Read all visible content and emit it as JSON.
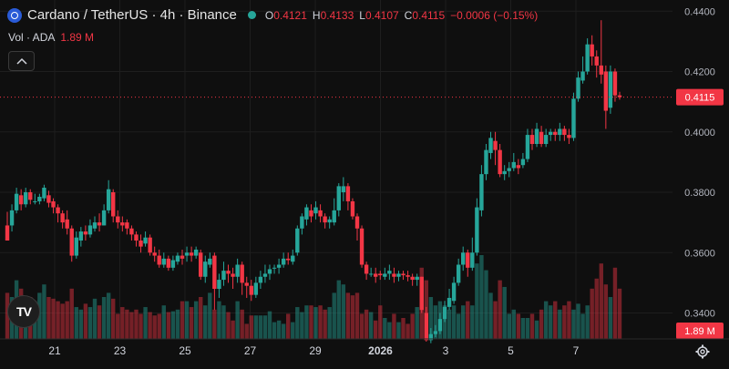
{
  "header": {
    "title": "Cardano / TetherUS · 4h · Binance",
    "open_label": "O",
    "open": "0.4121",
    "high_label": "H",
    "high": "0.4133",
    "low_label": "L",
    "low": "0.4107",
    "close_label": "C",
    "close": "0.4115",
    "change": "−0.0006 (−0.15%)"
  },
  "volume_legend": {
    "label": "Vol · ADA",
    "value": "1.89 M"
  },
  "price_badge": "0.4115",
  "volume_badge": "1.89 M",
  "colors": {
    "up": "#26a69a",
    "down": "#f23645",
    "background": "#0f0f0f",
    "grid": "#1e1e1e"
  },
  "icons": {
    "symbol": "cardano-coin-icon",
    "status": "market-status-dot-icon",
    "collapse": "chevron-up-icon",
    "settings": "gear-icon",
    "logo": "tradingview-logo-icon"
  },
  "logo_text": "TV",
  "chart_data": {
    "type": "candlestick",
    "x_ticks": [
      "21",
      "23",
      "25",
      "27",
      "29",
      "2026",
      "3",
      "5",
      "7"
    ],
    "y_ticks": [
      "0.4400",
      "0.4200",
      "0.4000",
      "0.3800",
      "0.3600",
      "0.3400"
    ],
    "ylim": [
      0.3314,
      0.4437
    ],
    "grid": true,
    "current_price": 0.4115,
    "candles": [
      [
        0.369,
        0.364,
        0.3735,
        0.364
      ],
      [
        0.369,
        0.374,
        0.376,
        0.367
      ],
      [
        0.374,
        0.3795,
        0.3815,
        0.373
      ],
      [
        0.379,
        0.376,
        0.381,
        0.374
      ],
      [
        0.376,
        0.38,
        0.3815,
        0.375
      ],
      [
        0.38,
        0.3775,
        0.381,
        0.376
      ],
      [
        0.377,
        0.377,
        0.3795,
        0.376
      ],
      [
        0.377,
        0.3785,
        0.3795,
        0.376
      ],
      [
        0.378,
        0.3815,
        0.3825,
        0.377
      ],
      [
        0.379,
        0.3765,
        0.3805,
        0.375
      ],
      [
        0.377,
        0.375,
        0.378,
        0.373
      ],
      [
        0.375,
        0.373,
        0.376,
        0.37
      ],
      [
        0.373,
        0.37,
        0.374,
        0.368
      ],
      [
        0.371,
        0.368,
        0.374,
        0.366
      ],
      [
        0.368,
        0.359,
        0.369,
        0.357
      ],
      [
        0.359,
        0.365,
        0.367,
        0.358
      ],
      [
        0.364,
        0.367,
        0.3685,
        0.362
      ],
      [
        0.367,
        0.366,
        0.369,
        0.364
      ],
      [
        0.366,
        0.369,
        0.371,
        0.365
      ],
      [
        0.368,
        0.37,
        0.372,
        0.367
      ],
      [
        0.37,
        0.369,
        0.373,
        0.367
      ],
      [
        0.369,
        0.374,
        0.376,
        0.369
      ],
      [
        0.374,
        0.381,
        0.384,
        0.373
      ],
      [
        0.38,
        0.372,
        0.381,
        0.37
      ],
      [
        0.372,
        0.37,
        0.374,
        0.368
      ],
      [
        0.37,
        0.369,
        0.372,
        0.367
      ],
      [
        0.37,
        0.368,
        0.371,
        0.366
      ],
      [
        0.368,
        0.366,
        0.369,
        0.364
      ],
      [
        0.366,
        0.364,
        0.367,
        0.362
      ],
      [
        0.364,
        0.362,
        0.366,
        0.36
      ],
      [
        0.363,
        0.365,
        0.367,
        0.362
      ],
      [
        0.365,
        0.36,
        0.366,
        0.359
      ],
      [
        0.36,
        0.359,
        0.362,
        0.357
      ],
      [
        0.359,
        0.356,
        0.361,
        0.355
      ],
      [
        0.356,
        0.358,
        0.36,
        0.355
      ],
      [
        0.358,
        0.355,
        0.359,
        0.354
      ],
      [
        0.355,
        0.3575,
        0.359,
        0.354
      ],
      [
        0.357,
        0.359,
        0.36,
        0.356
      ],
      [
        0.359,
        0.358,
        0.361,
        0.356
      ],
      [
        0.359,
        0.36,
        0.362,
        0.357
      ],
      [
        0.36,
        0.359,
        0.362,
        0.357
      ],
      [
        0.359,
        0.361,
        0.362,
        0.358
      ],
      [
        0.36,
        0.352,
        0.361,
        0.351
      ],
      [
        0.352,
        0.357,
        0.359,
        0.35
      ],
      [
        0.356,
        0.358,
        0.36,
        0.355
      ],
      [
        0.359,
        0.348,
        0.36,
        0.341
      ],
      [
        0.348,
        0.351,
        0.353,
        0.345
      ],
      [
        0.351,
        0.354,
        0.357,
        0.349
      ],
      [
        0.354,
        0.353,
        0.356,
        0.35
      ],
      [
        0.353,
        0.352,
        0.355,
        0.348
      ],
      [
        0.352,
        0.356,
        0.358,
        0.35
      ],
      [
        0.356,
        0.35,
        0.357,
        0.346
      ],
      [
        0.35,
        0.349,
        0.352,
        0.345
      ],
      [
        0.349,
        0.346,
        0.351,
        0.344
      ],
      [
        0.346,
        0.35,
        0.352,
        0.345
      ],
      [
        0.35,
        0.352,
        0.354,
        0.348
      ],
      [
        0.352,
        0.353,
        0.356,
        0.35
      ],
      [
        0.353,
        0.3545,
        0.356,
        0.351
      ],
      [
        0.355,
        0.355,
        0.356,
        0.353
      ],
      [
        0.355,
        0.356,
        0.358,
        0.353
      ],
      [
        0.356,
        0.358,
        0.36,
        0.355
      ],
      [
        0.358,
        0.3575,
        0.36,
        0.356
      ],
      [
        0.357,
        0.359,
        0.361,
        0.356
      ],
      [
        0.36,
        0.368,
        0.369,
        0.359
      ],
      [
        0.368,
        0.372,
        0.373,
        0.366
      ],
      [
        0.371,
        0.375,
        0.376,
        0.369
      ],
      [
        0.374,
        0.372,
        0.376,
        0.37
      ],
      [
        0.373,
        0.375,
        0.377,
        0.371
      ],
      [
        0.374,
        0.372,
        0.376,
        0.37
      ],
      [
        0.372,
        0.37,
        0.373,
        0.368
      ],
      [
        0.37,
        0.371,
        0.372,
        0.368
      ],
      [
        0.37,
        0.374,
        0.378,
        0.369
      ],
      [
        0.374,
        0.382,
        0.383,
        0.372
      ],
      [
        0.38,
        0.382,
        0.385,
        0.377
      ],
      [
        0.382,
        0.377,
        0.383,
        0.374
      ],
      [
        0.377,
        0.372,
        0.378,
        0.371
      ],
      [
        0.372,
        0.368,
        0.373,
        0.364
      ],
      [
        0.368,
        0.356,
        0.369,
        0.355
      ],
      [
        0.356,
        0.353,
        0.357,
        0.351
      ],
      [
        0.353,
        0.353,
        0.355,
        0.352
      ],
      [
        0.353,
        0.352,
        0.355,
        0.35
      ],
      [
        0.353,
        0.3525,
        0.354,
        0.351
      ],
      [
        0.352,
        0.353,
        0.355,
        0.351
      ],
      [
        0.353,
        0.354,
        0.356,
        0.351
      ],
      [
        0.353,
        0.352,
        0.355,
        0.35
      ],
      [
        0.352,
        0.353,
        0.354,
        0.3505
      ],
      [
        0.353,
        0.3525,
        0.354,
        0.351
      ],
      [
        0.3525,
        0.352,
        0.354,
        0.3505
      ],
      [
        0.352,
        0.351,
        0.353,
        0.349
      ],
      [
        0.351,
        0.352,
        0.353,
        0.349
      ],
      [
        0.352,
        0.341,
        0.352,
        0.34
      ],
      [
        0.34,
        0.331,
        0.342,
        0.3305
      ],
      [
        0.331,
        0.333,
        0.335,
        0.33
      ],
      [
        0.333,
        0.334,
        0.336,
        0.332
      ],
      [
        0.334,
        0.338,
        0.34,
        0.333
      ],
      [
        0.338,
        0.342,
        0.344,
        0.337
      ],
      [
        0.342,
        0.345,
        0.348,
        0.341
      ],
      [
        0.344,
        0.35,
        0.352,
        0.343
      ],
      [
        0.35,
        0.356,
        0.358,
        0.349
      ],
      [
        0.356,
        0.36,
        0.362,
        0.354
      ],
      [
        0.36,
        0.355,
        0.361,
        0.352
      ],
      [
        0.355,
        0.36,
        0.365,
        0.354
      ],
      [
        0.36,
        0.375,
        0.378,
        0.359
      ],
      [
        0.374,
        0.386,
        0.389,
        0.372
      ],
      [
        0.386,
        0.394,
        0.396,
        0.384
      ],
      [
        0.393,
        0.398,
        0.4,
        0.391
      ],
      [
        0.397,
        0.394,
        0.4,
        0.389
      ],
      [
        0.394,
        0.386,
        0.396,
        0.385
      ],
      [
        0.386,
        0.387,
        0.389,
        0.384
      ],
      [
        0.387,
        0.388,
        0.39,
        0.385
      ],
      [
        0.388,
        0.39,
        0.393,
        0.387
      ],
      [
        0.389,
        0.388,
        0.391,
        0.386
      ],
      [
        0.389,
        0.391,
        0.393,
        0.388
      ],
      [
        0.391,
        0.399,
        0.401,
        0.39
      ],
      [
        0.399,
        0.396,
        0.401,
        0.394
      ],
      [
        0.396,
        0.401,
        0.403,
        0.395
      ],
      [
        0.4,
        0.396,
        0.402,
        0.395
      ],
      [
        0.396,
        0.399,
        0.401,
        0.395
      ],
      [
        0.399,
        0.4,
        0.401,
        0.397
      ],
      [
        0.4,
        0.399,
        0.401,
        0.397
      ],
      [
        0.399,
        0.401,
        0.403,
        0.397
      ],
      [
        0.401,
        0.399,
        0.402,
        0.397
      ],
      [
        0.399,
        0.398,
        0.401,
        0.396
      ],
      [
        0.398,
        0.411,
        0.413,
        0.397
      ],
      [
        0.411,
        0.418,
        0.42,
        0.41
      ],
      [
        0.417,
        0.42,
        0.425,
        0.416
      ],
      [
        0.42,
        0.429,
        0.431,
        0.419
      ],
      [
        0.429,
        0.425,
        0.432,
        0.422
      ],
      [
        0.425,
        0.422,
        0.427,
        0.418
      ],
      [
        0.422,
        0.419,
        0.437,
        0.416
      ],
      [
        0.42,
        0.407,
        0.422,
        0.401
      ],
      [
        0.408,
        0.42,
        0.422,
        0.406
      ],
      [
        0.42,
        0.4121,
        0.421,
        0.41
      ],
      [
        0.4121,
        0.4115,
        0.4133,
        0.4107
      ]
    ],
    "volumes": [
      0.55,
      0.5,
      0.7,
      0.6,
      0.45,
      0.5,
      0.45,
      0.55,
      0.65,
      0.5,
      0.48,
      0.45,
      0.42,
      0.45,
      0.6,
      0.38,
      0.35,
      0.42,
      0.38,
      0.48,
      0.4,
      0.5,
      0.55,
      0.48,
      0.3,
      0.38,
      0.35,
      0.32,
      0.35,
      0.3,
      0.38,
      0.32,
      0.28,
      0.3,
      0.4,
      0.32,
      0.33,
      0.35,
      0.45,
      0.45,
      0.38,
      0.45,
      0.5,
      0.4,
      0.55,
      0.35,
      0.45,
      0.4,
      0.32,
      0.22,
      0.45,
      0.35,
      0.18,
      0.28,
      0.28,
      0.28,
      0.28,
      0.33,
      0.2,
      0.22,
      0.18,
      0.3,
      0.2,
      0.38,
      0.32,
      0.4,
      0.4,
      0.38,
      0.4,
      0.35,
      0.38,
      0.55,
      0.7,
      0.65,
      0.55,
      0.52,
      0.55,
      0.3,
      0.35,
      0.32,
      0.22,
      0.4,
      0.25,
      0.2,
      0.3,
      0.2,
      0.25,
      0.18,
      0.3,
      0.38,
      0.85,
      0.7,
      0.5,
      0.4,
      0.45,
      0.4,
      0.35,
      0.4,
      0.3,
      0.4,
      0.45,
      0.4,
      0.9,
      1.0,
      0.82,
      0.55,
      0.45,
      0.7,
      0.62,
      0.3,
      0.35,
      0.3,
      0.25,
      0.25,
      0.3,
      0.22,
      0.35,
      0.45,
      0.4,
      0.45,
      0.35,
      0.4,
      0.45,
      0.35,
      0.42,
      0.3,
      0.4,
      0.6,
      0.72,
      0.9,
      0.65,
      0.5,
      0.85,
      0.6,
      0.8,
      0.95,
      0.32,
      0.15
    ]
  }
}
